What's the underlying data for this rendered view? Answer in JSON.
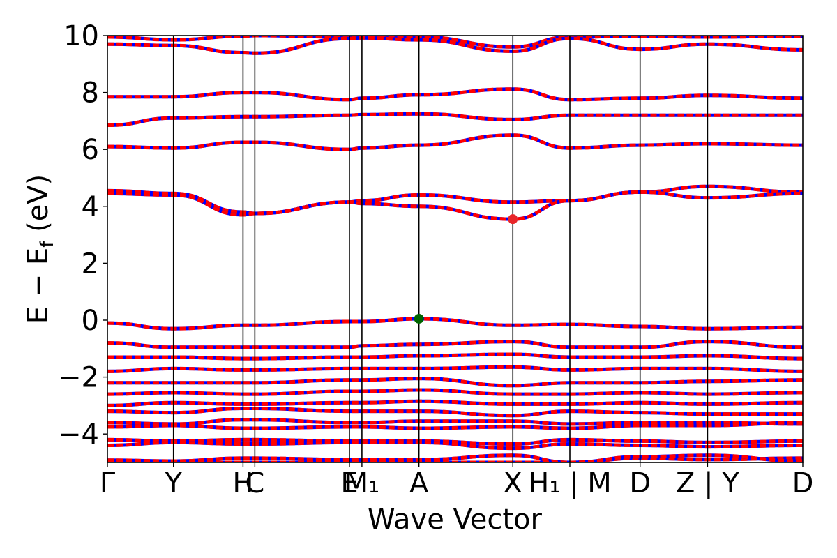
{
  "chart_data": {
    "type": "line",
    "xlabel": "Wave Vector",
    "ylabel": "E − E",
    "ylabel_sub": "f",
    "ylabel_unit": " (eV)",
    "ylim": [
      -5,
      10
    ],
    "yticks": [
      -4,
      -2,
      0,
      2,
      4,
      6,
      8,
      10
    ],
    "ytick_labels": [
      "−4",
      "−2",
      "0",
      "2",
      "4",
      "6",
      "8",
      "10"
    ],
    "x_range": [
      0,
      10
    ],
    "kpoints": [
      {
        "x": 0.0,
        "label": "Γ"
      },
      {
        "x": 0.95,
        "label": "Y"
      },
      {
        "x": 1.95,
        "label": "H"
      },
      {
        "x": 2.12,
        "label": "C"
      },
      {
        "x": 3.48,
        "label": "E"
      },
      {
        "x": 3.66,
        "label": "M₁"
      },
      {
        "x": 4.48,
        "label": "A"
      },
      {
        "x": 5.83,
        "label": "X"
      },
      {
        "x": 6.65,
        "label": "H₁ | M"
      },
      {
        "x": 7.66,
        "label": "D"
      },
      {
        "x": 8.63,
        "label": "Z | Y"
      },
      {
        "x": 10.0,
        "label": "D"
      }
    ],
    "spin_colors": {
      "spin_up": "#ff0000",
      "spin_down": "#0000ff"
    },
    "vbm": {
      "x": 4.48,
      "y": 0.05,
      "color": "#006400"
    },
    "cbm": {
      "x": 5.83,
      "y": 3.55,
      "color": "#e8262a"
    },
    "bands": [
      {
        "x": [
          0,
          0.95,
          1.95,
          2.12,
          3.48,
          3.66,
          4.48,
          5.83,
          6.65,
          7.66,
          8.63,
          10
        ],
        "y": [
          9.95,
          9.85,
          9.98,
          10.0,
          9.95,
          9.96,
          9.95,
          9.6,
          9.95,
          9.98,
          9.95,
          9.98
        ]
      },
      {
        "x": [
          0,
          0.95,
          1.95,
          2.12,
          3.48,
          3.66,
          4.48,
          5.83,
          6.65,
          7.66,
          8.63,
          10
        ],
        "y": [
          9.7,
          9.65,
          9.4,
          9.38,
          9.9,
          9.92,
          9.85,
          9.45,
          9.9,
          9.52,
          9.7,
          9.5
        ]
      },
      {
        "x": [
          0,
          0.95,
          1.95,
          2.12,
          3.48,
          3.66,
          4.48,
          5.83,
          6.65,
          7.66,
          8.63,
          10
        ],
        "y": [
          7.85,
          7.85,
          8.0,
          8.0,
          7.75,
          7.8,
          7.92,
          8.12,
          7.75,
          7.8,
          7.9,
          7.8
        ]
      },
      {
        "x": [
          0,
          0.95,
          1.95,
          2.12,
          3.48,
          3.66,
          4.48,
          5.83,
          6.65,
          7.66,
          8.63,
          10
        ],
        "y": [
          6.85,
          7.1,
          7.15,
          7.15,
          7.2,
          7.22,
          7.25,
          7.05,
          7.2,
          7.2,
          7.2,
          7.2
        ]
      },
      {
        "x": [
          0,
          0.95,
          1.95,
          2.12,
          3.48,
          3.66,
          4.48,
          5.83,
          6.65,
          7.66,
          8.63,
          10
        ],
        "y": [
          6.1,
          6.05,
          6.25,
          6.25,
          6.0,
          6.05,
          6.15,
          6.5,
          6.05,
          6.15,
          6.2,
          6.15
        ]
      },
      {
        "x": [
          0,
          0.95,
          1.95,
          2.12,
          3.48,
          3.66,
          4.48,
          5.83,
          6.65,
          7.66,
          8.63,
          10
        ],
        "y": [
          4.55,
          4.45,
          3.8,
          3.75,
          4.15,
          4.2,
          4.4,
          4.15,
          4.2,
          4.5,
          4.7,
          4.5
        ]
      },
      {
        "x": [
          0,
          0.95,
          1.95,
          2.12,
          3.48,
          3.66,
          4.48,
          5.83,
          6.65,
          7.66,
          8.63,
          10
        ],
        "y": [
          4.45,
          4.4,
          3.7,
          3.75,
          4.15,
          4.1,
          4.0,
          3.55,
          4.2,
          4.5,
          4.3,
          4.45
        ]
      },
      {
        "x": [
          0,
          0.95,
          1.95,
          2.12,
          3.48,
          3.66,
          4.48,
          5.83,
          6.65,
          7.66,
          8.63,
          10
        ],
        "y": [
          -0.1,
          -0.3,
          -0.18,
          -0.18,
          -0.05,
          -0.05,
          0.05,
          -0.18,
          -0.15,
          -0.22,
          -0.3,
          -0.25
        ]
      },
      {
        "x": [
          0,
          0.95,
          1.95,
          2.12,
          3.48,
          3.66,
          4.48,
          5.83,
          6.65,
          7.66,
          8.63,
          10
        ],
        "y": [
          -0.8,
          -0.95,
          -0.95,
          -0.95,
          -0.95,
          -0.9,
          -0.85,
          -0.75,
          -0.95,
          -0.95,
          -0.75,
          -0.95
        ]
      },
      {
        "x": [
          0,
          0.95,
          1.95,
          2.12,
          3.48,
          3.66,
          4.48,
          5.83,
          6.65,
          7.66,
          8.63,
          10
        ],
        "y": [
          -1.3,
          -1.3,
          -1.35,
          -1.35,
          -1.3,
          -1.3,
          -1.25,
          -1.2,
          -1.3,
          -1.3,
          -1.25,
          -1.35
        ]
      },
      {
        "x": [
          0,
          0.95,
          1.95,
          2.12,
          3.48,
          3.66,
          4.48,
          5.83,
          6.65,
          7.66,
          8.63,
          10
        ],
        "y": [
          -1.8,
          -1.7,
          -1.75,
          -1.75,
          -1.7,
          -1.7,
          -1.7,
          -1.65,
          -1.75,
          -1.7,
          -1.7,
          -1.8
        ]
      },
      {
        "x": [
          0,
          0.95,
          1.95,
          2.12,
          3.48,
          3.66,
          4.48,
          5.83,
          6.65,
          7.66,
          8.63,
          10
        ],
        "y": [
          -2.2,
          -2.2,
          -2.2,
          -2.2,
          -2.1,
          -2.1,
          -2.05,
          -2.3,
          -2.2,
          -2.2,
          -2.15,
          -2.1
        ]
      },
      {
        "x": [
          0,
          0.95,
          1.95,
          2.12,
          3.48,
          3.66,
          4.48,
          5.83,
          6.65,
          7.66,
          8.63,
          10
        ],
        "y": [
          -2.6,
          -2.55,
          -2.6,
          -2.6,
          -2.5,
          -2.5,
          -2.45,
          -2.6,
          -2.6,
          -2.55,
          -2.6,
          -2.55
        ]
      },
      {
        "x": [
          0,
          0.95,
          1.95,
          2.12,
          3.48,
          3.66,
          4.48,
          5.83,
          6.65,
          7.66,
          8.63,
          10
        ],
        "y": [
          -3.0,
          -2.9,
          -2.95,
          -2.95,
          -2.9,
          -2.9,
          -2.85,
          -2.95,
          -2.95,
          -2.9,
          -2.95,
          -2.9
        ]
      },
      {
        "x": [
          0,
          0.95,
          1.95,
          2.12,
          3.48,
          3.66,
          4.48,
          5.83,
          6.65,
          7.66,
          8.63,
          10
        ],
        "y": [
          -3.2,
          -3.25,
          -3.1,
          -3.1,
          -3.2,
          -3.2,
          -3.2,
          -3.35,
          -3.2,
          -3.25,
          -3.3,
          -3.3
        ]
      },
      {
        "x": [
          0,
          0.95,
          1.95,
          2.12,
          3.48,
          3.66,
          4.48,
          5.83,
          6.65,
          7.66,
          8.63,
          10
        ],
        "y": [
          -3.6,
          -3.65,
          -3.5,
          -3.5,
          -3.6,
          -3.6,
          -3.55,
          -3.55,
          -3.65,
          -3.6,
          -3.6,
          -3.65
        ]
      },
      {
        "x": [
          0,
          0.95,
          1.95,
          2.12,
          3.48,
          3.66,
          4.48,
          5.83,
          6.65,
          7.66,
          8.63,
          10
        ],
        "y": [
          -3.75,
          -3.7,
          -3.8,
          -3.8,
          -3.75,
          -3.75,
          -3.8,
          -3.75,
          -3.8,
          -3.7,
          -3.7,
          -3.6
        ]
      },
      {
        "x": [
          0,
          0.95,
          1.95,
          2.12,
          3.48,
          3.66,
          4.48,
          5.83,
          6.65,
          7.66,
          8.63,
          10
        ],
        "y": [
          -4.2,
          -4.25,
          -4.2,
          -4.2,
          -4.25,
          -4.25,
          -4.25,
          -4.35,
          -4.2,
          -4.25,
          -4.3,
          -4.25
        ]
      },
      {
        "x": [
          0,
          0.95,
          1.95,
          2.12,
          3.48,
          3.66,
          4.48,
          5.83,
          6.65,
          7.66,
          8.63,
          10
        ],
        "y": [
          -4.4,
          -4.3,
          -4.35,
          -4.35,
          -4.3,
          -4.3,
          -4.3,
          -4.5,
          -4.35,
          -4.4,
          -4.45,
          -4.4
        ]
      },
      {
        "x": [
          0,
          0.95,
          1.95,
          2.12,
          3.48,
          3.66,
          4.48,
          5.83,
          6.65,
          7.66,
          8.63,
          10
        ],
        "y": [
          -4.92,
          -4.95,
          -4.85,
          -4.85,
          -4.9,
          -4.9,
          -4.9,
          -4.75,
          -5.0,
          -4.85,
          -4.9,
          -4.85
        ]
      },
      {
        "x": [
          0,
          0.95,
          1.95,
          2.12,
          3.48,
          3.66,
          4.48,
          5.83,
          6.65,
          7.66,
          8.63,
          10
        ],
        "y": [
          -5.0,
          -5.0,
          -5.0,
          -5.0,
          -5.0,
          -5.0,
          -5.0,
          -5.0,
          -5.0,
          -4.8,
          -4.75,
          -4.95
        ]
      }
    ]
  }
}
